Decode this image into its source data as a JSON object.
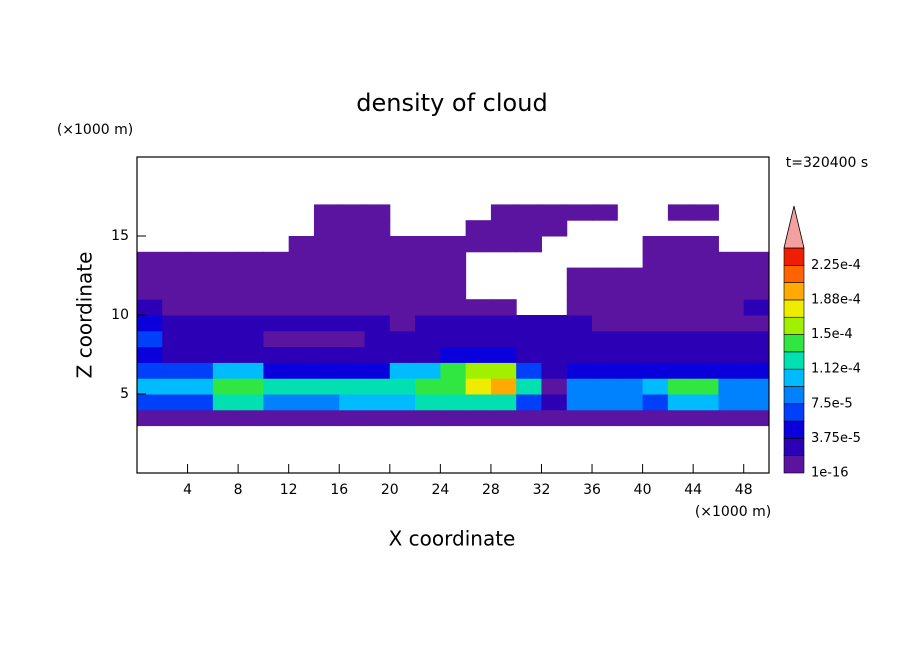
{
  "chart_data": {
    "type": "contour",
    "title": "density of cloud",
    "x_label": "X coordinate",
    "y_label": "Z coordinate",
    "x_unit": "(×1000 m)",
    "y_unit": "(×1000 m)",
    "annotation": "t=320400 s",
    "xlim": [
      0,
      50
    ],
    "ylim": [
      0,
      20
    ],
    "xticks": [
      4,
      8,
      12,
      16,
      20,
      24,
      28,
      32,
      36,
      40,
      44,
      48
    ],
    "yticks": [
      5,
      10,
      15
    ],
    "x_edges": [
      0,
      2,
      4,
      6,
      8,
      10,
      12,
      14,
      16,
      18,
      20,
      22,
      24,
      26,
      28,
      30,
      32,
      34,
      36,
      38,
      40,
      42,
      44,
      46,
      48,
      50
    ],
    "z_edges": [
      3,
      4,
      5,
      6,
      7,
      8,
      9,
      10,
      11,
      12,
      13,
      14,
      15,
      16,
      17
    ],
    "grid": [
      [
        1e-05,
        1e-05,
        1e-05,
        1e-05,
        1e-05,
        1e-05,
        1e-05,
        1e-05,
        1e-05,
        1e-05,
        1e-05,
        1e-05,
        1e-05,
        1e-05,
        1e-05,
        1e-05,
        1e-05,
        1e-05,
        1e-05,
        1e-05,
        1e-05,
        1e-05,
        1e-05,
        1e-05,
        1e-05
      ],
      [
        6e-05,
        6e-05,
        6e-05,
        0.00012,
        0.00012,
        8e-05,
        8e-05,
        8e-05,
        0.0001,
        0.0001,
        0.0001,
        0.00012,
        0.00012,
        0.00012,
        0.00012,
        6e-05,
        2.5e-05,
        8e-05,
        8e-05,
        8e-05,
        6e-05,
        0.0001,
        0.0001,
        8e-05,
        8e-05
      ],
      [
        0.0001,
        0.0001,
        0.0001,
        0.00014,
        0.00014,
        0.00012,
        0.00012,
        0.00012,
        0.00012,
        0.00012,
        0.00012,
        0.00014,
        0.00014,
        0.00018,
        0.00019,
        0.00012,
        1e-05,
        8e-05,
        8e-05,
        8e-05,
        0.0001,
        0.00014,
        0.00014,
        8e-05,
        8e-05
      ],
      [
        6e-05,
        6e-05,
        6e-05,
        0.0001,
        0.0001,
        4e-05,
        4e-05,
        4e-05,
        4e-05,
        4e-05,
        0.0001,
        0.0001,
        0.00014,
        0.00016,
        0.00016,
        6e-05,
        2.5e-05,
        4e-05,
        4e-05,
        4e-05,
        4e-05,
        4e-05,
        4e-05,
        4e-05,
        4e-05
      ],
      [
        4e-05,
        2.5e-05,
        2.5e-05,
        2.5e-05,
        2.5e-05,
        2.5e-05,
        2.5e-05,
        2.5e-05,
        2.5e-05,
        2.5e-05,
        2.5e-05,
        2.5e-05,
        4e-05,
        4e-05,
        4e-05,
        2.5e-05,
        2.5e-05,
        2.5e-05,
        2.5e-05,
        2.5e-05,
        2.5e-05,
        2.5e-05,
        2.5e-05,
        2.5e-05,
        2.5e-05
      ],
      [
        6e-05,
        2.5e-05,
        2.5e-05,
        2.5e-05,
        2.5e-05,
        1e-05,
        1e-05,
        1e-05,
        1e-05,
        2.5e-05,
        2.5e-05,
        2.5e-05,
        2.5e-05,
        2.5e-05,
        2.5e-05,
        2.5e-05,
        2.5e-05,
        2.5e-05,
        2.5e-05,
        2.5e-05,
        2.5e-05,
        2.5e-05,
        2.5e-05,
        2.5e-05,
        2.5e-05
      ],
      [
        4e-05,
        2.5e-05,
        2.5e-05,
        2.5e-05,
        2.5e-05,
        2.5e-05,
        2.5e-05,
        2.5e-05,
        2.5e-05,
        2.5e-05,
        1e-05,
        2.5e-05,
        2.5e-05,
        2.5e-05,
        2.5e-05,
        2.5e-05,
        2.5e-05,
        2.5e-05,
        1e-05,
        1e-05,
        1e-05,
        1e-05,
        1e-05,
        1e-05,
        1e-05
      ],
      [
        2.5e-05,
        1e-05,
        1e-05,
        1e-05,
        1e-05,
        1e-05,
        1e-05,
        1e-05,
        1e-05,
        1e-05,
        1e-05,
        1e-05,
        1e-05,
        1e-05,
        1e-05,
        null,
        null,
        1e-05,
        1e-05,
        1e-05,
        1e-05,
        1e-05,
        1e-05,
        1e-05,
        2.5e-05
      ],
      [
        1e-05,
        1e-05,
        1e-05,
        1e-05,
        1e-05,
        1e-05,
        1e-05,
        1e-05,
        1e-05,
        1e-05,
        1e-05,
        1e-05,
        1e-05,
        null,
        null,
        null,
        null,
        1e-05,
        1e-05,
        1e-05,
        1e-05,
        1e-05,
        1e-05,
        1e-05,
        1e-05
      ],
      [
        1e-05,
        1e-05,
        1e-05,
        1e-05,
        1e-05,
        1e-05,
        1e-05,
        1e-05,
        1e-05,
        1e-05,
        1e-05,
        1e-05,
        1e-05,
        null,
        null,
        null,
        null,
        1e-05,
        1e-05,
        1e-05,
        1e-05,
        1e-05,
        1e-05,
        1e-05,
        1e-05
      ],
      [
        1e-05,
        1e-05,
        1e-05,
        1e-05,
        1e-05,
        1e-05,
        1e-05,
        1e-05,
        1e-05,
        1e-05,
        1e-05,
        1e-05,
        1e-05,
        null,
        null,
        null,
        null,
        null,
        null,
        null,
        1e-05,
        1e-05,
        1e-05,
        1e-05,
        1e-05
      ],
      [
        null,
        null,
        null,
        null,
        null,
        null,
        1e-05,
        1e-05,
        1e-05,
        1e-05,
        1e-05,
        1e-05,
        1e-05,
        1e-05,
        1e-05,
        1e-05,
        null,
        null,
        null,
        null,
        1e-05,
        1e-05,
        1e-05,
        null,
        null
      ],
      [
        null,
        null,
        null,
        null,
        null,
        null,
        null,
        1e-05,
        1e-05,
        1e-05,
        null,
        null,
        null,
        1e-05,
        1e-05,
        1e-05,
        1e-05,
        null,
        null,
        null,
        null,
        null,
        null,
        null,
        null
      ],
      [
        null,
        null,
        null,
        null,
        null,
        null,
        null,
        1e-05,
        1e-05,
        1e-05,
        null,
        null,
        null,
        null,
        1e-05,
        1e-05,
        1e-05,
        1e-05,
        1e-05,
        null,
        null,
        1e-05,
        1e-05,
        null,
        null
      ]
    ],
    "colorbar": {
      "levels": [
        1e-16,
        1.875e-05,
        {
          "value": 3.75e-05,
          "label": "3.75e-5"
        },
        5.625e-05,
        {
          "value": 7.5e-05,
          "label": "7.5e-5"
        },
        9.375e-05,
        {
          "value": 0.0001125,
          "label": "1.12e-4"
        },
        0.00013125,
        {
          "value": 0.00015,
          "label": "1.5e-4"
        },
        0.00016875,
        {
          "value": 0.0001875,
          "label": "1.88e-4"
        },
        0.00020625,
        {
          "value": 0.000225,
          "label": "2.25e-4"
        },
        0.00024375
      ],
      "labeled": [
        0,
        2,
        4,
        6,
        8,
        10,
        12
      ],
      "colors": [
        "#5a14a0",
        "#2c00b4",
        "#0a00dc",
        "#0040f8",
        "#0082ff",
        "#00bcff",
        "#00e0b0",
        "#30e640",
        "#a0f000",
        "#f0ec00",
        "#ffaa00",
        "#ff6400",
        "#f01e00"
      ],
      "extend_color": "#f4a0a0"
    }
  }
}
